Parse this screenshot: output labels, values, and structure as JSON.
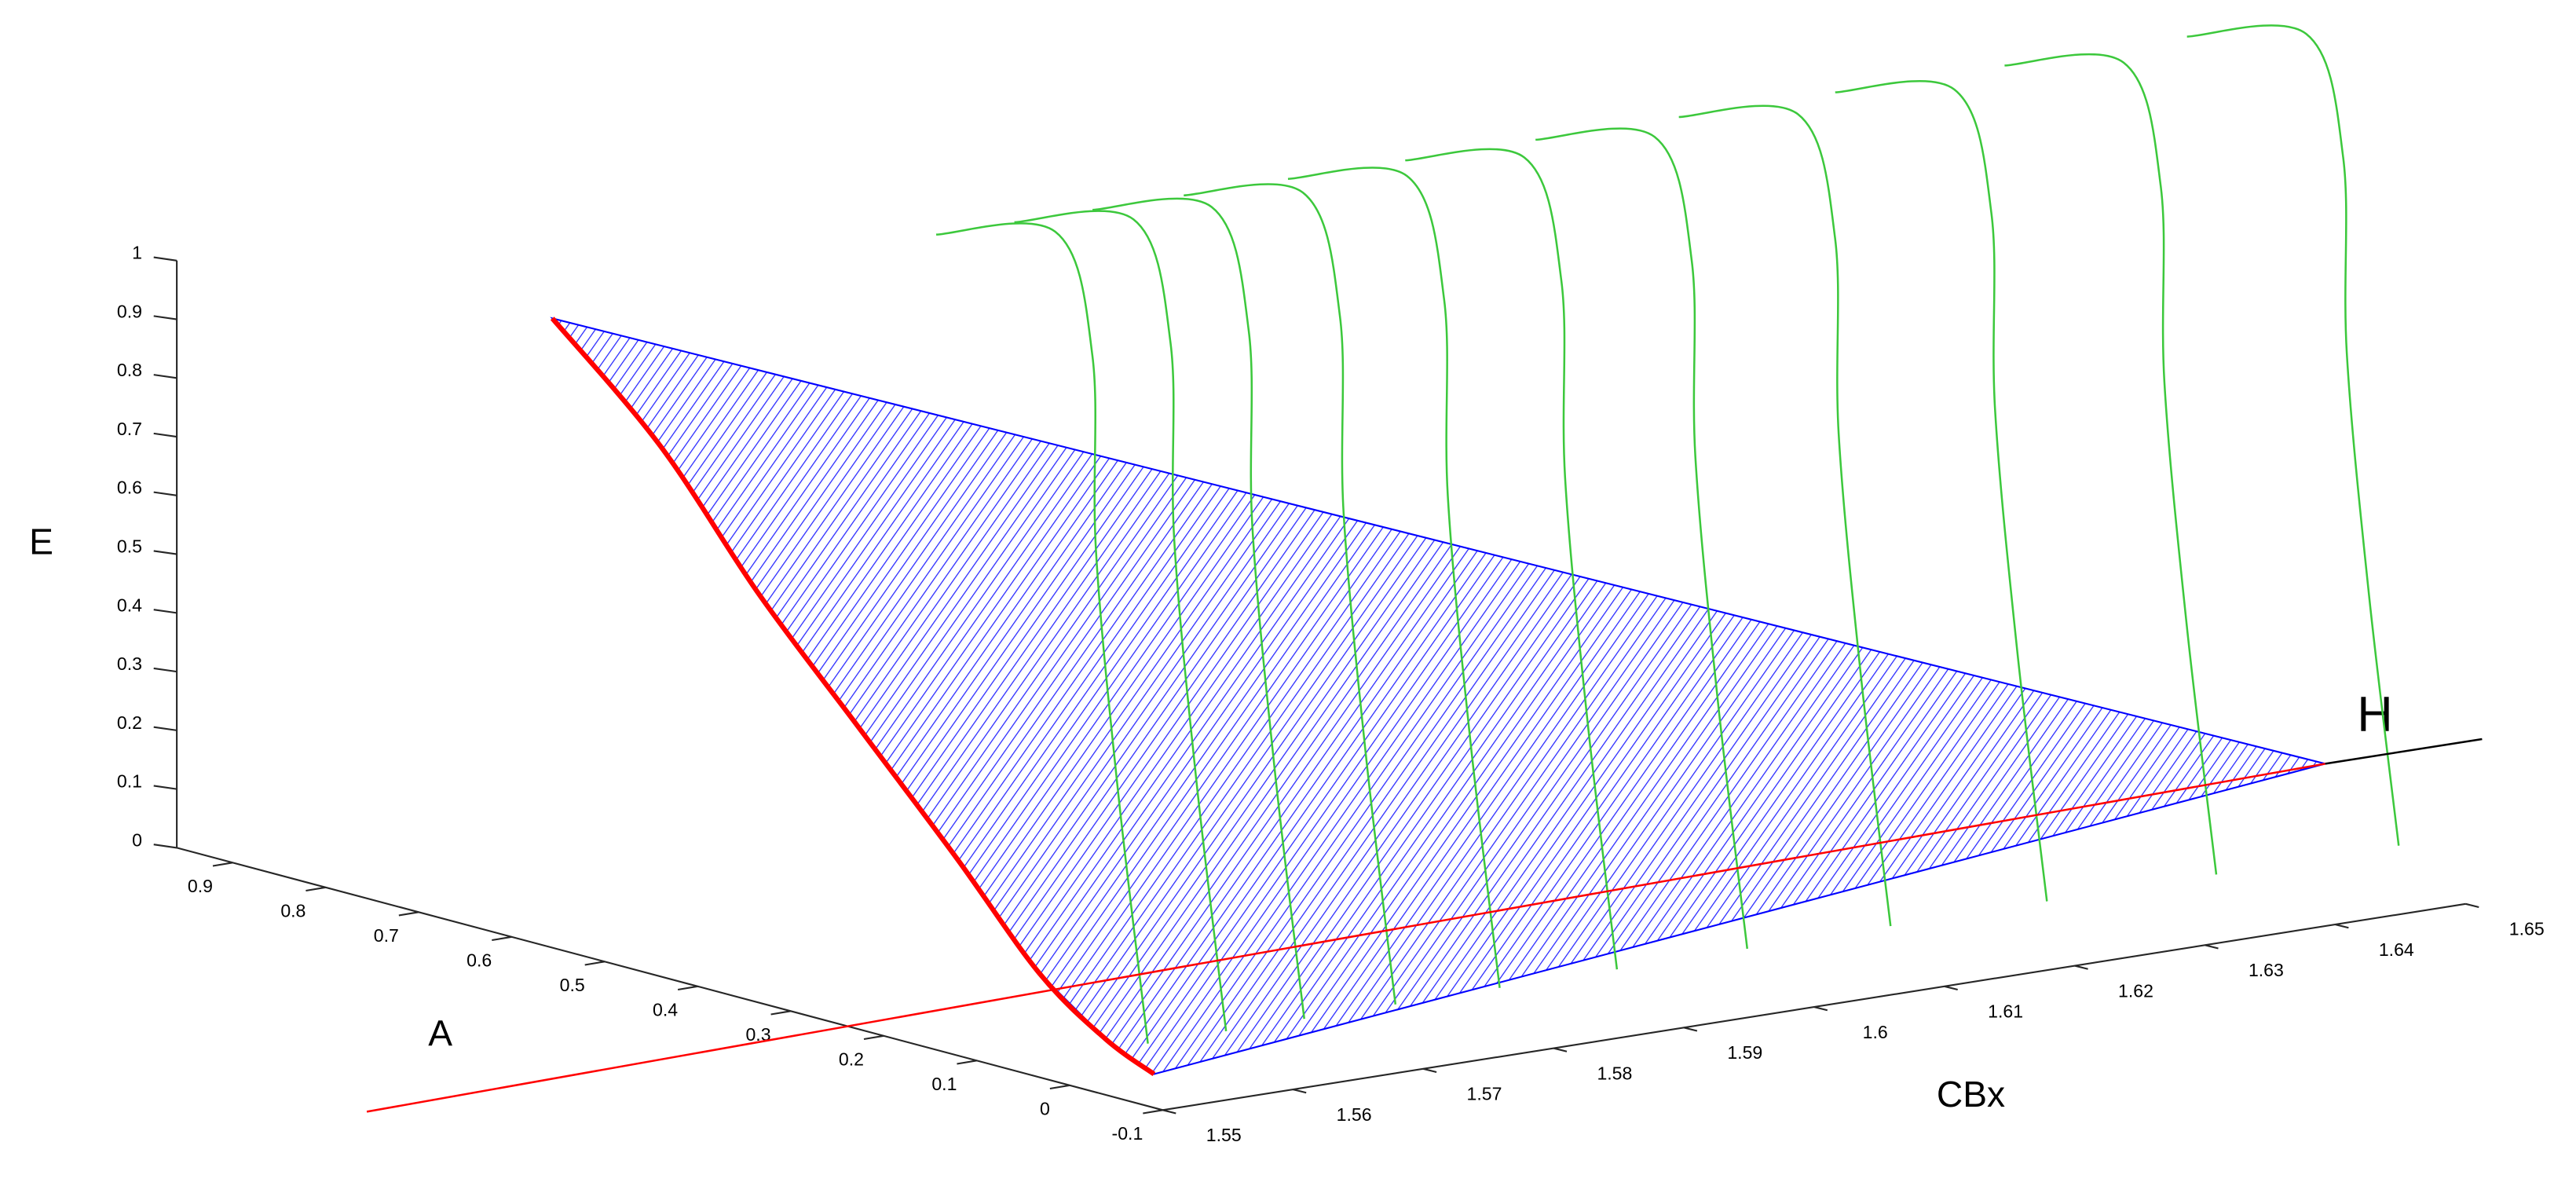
{
  "chart_data": {
    "type": "line3d",
    "xlabel": "CBx",
    "ylabel": "A",
    "zlabel": "E",
    "annotation": "H",
    "xlim": [
      1.55,
      1.65
    ],
    "xticks": [
      1.55,
      1.56,
      1.57,
      1.58,
      1.59,
      1.6,
      1.61,
      1.62,
      1.63,
      1.64,
      1.65
    ],
    "ylim": [
      -0.1,
      0.96
    ],
    "yticks": [
      -0.1,
      0,
      0.1,
      0.2,
      0.3,
      0.4,
      0.5,
      0.6,
      0.7,
      0.8,
      0.9
    ],
    "zlim": [
      0,
      1
    ],
    "zticks": [
      0,
      0.1,
      0.2,
      0.3,
      0.4,
      0.5,
      0.6,
      0.7,
      0.8,
      0.9,
      1
    ],
    "series": [
      {
        "color": "#0000ff",
        "style": "sheet",
        "x": [
          1.5674,
          1.5671,
          1.5654,
          1.5637,
          1.5627,
          1.5598,
          1.5563,
          1.5529,
          1.6686
        ],
        "y": [
          0.8,
          0.68,
          0.55,
          0.42,
          0.3,
          0.17,
          0.05,
          -0.05,
          0.3115
        ],
        "z": [
          0.908,
          0.743,
          0.551,
          0.387,
          0.217,
          0.085,
          0.036,
          0.03,
          0
        ]
      },
      {
        "color": "#3cc83c",
        "x": [
          1.556,
          1.568,
          1.582,
          1.596,
          1.606,
          1.604
        ],
        "y": [
          0,
          0.2,
          0.42,
          0.62,
          0.8,
          0.9
        ],
        "z": [
          0.05,
          0.35,
          0.62,
          0.82,
          0.92,
          0.88
        ]
      },
      {
        "color": "#3cc83c",
        "x": [
          1.562,
          1.574,
          1.588,
          1.602,
          1.612,
          1.61
        ],
        "y": [
          0,
          0.2,
          0.42,
          0.62,
          0.8,
          0.9
        ],
        "z": [
          0.05,
          0.35,
          0.62,
          0.82,
          0.92,
          0.88
        ]
      },
      {
        "color": "#3cc83c",
        "x": [
          1.568,
          1.58,
          1.594,
          1.608,
          1.618,
          1.616
        ],
        "y": [
          0,
          0.2,
          0.42,
          0.62,
          0.8,
          0.9
        ],
        "z": [
          0.05,
          0.35,
          0.62,
          0.82,
          0.92,
          0.88
        ]
      },
      {
        "color": "#3cc83c",
        "x": [
          1.575,
          1.587,
          1.601,
          1.615,
          1.625,
          1.623
        ],
        "y": [
          0,
          0.2,
          0.42,
          0.62,
          0.8,
          0.9
        ],
        "z": [
          0.05,
          0.35,
          0.62,
          0.82,
          0.92,
          0.88
        ]
      },
      {
        "color": "#3cc83c",
        "x": [
          1.583,
          1.595,
          1.609,
          1.623,
          1.633,
          1.631
        ],
        "y": [
          0,
          0.2,
          0.42,
          0.62,
          0.8,
          0.9
        ],
        "z": [
          0.05,
          0.35,
          0.62,
          0.82,
          0.92,
          0.88
        ]
      },
      {
        "color": "#3cc83c",
        "x": [
          1.592,
          1.604,
          1.618,
          1.632,
          1.642,
          1.64
        ],
        "y": [
          0,
          0.2,
          0.42,
          0.62,
          0.8,
          0.9
        ],
        "z": [
          0.05,
          0.35,
          0.62,
          0.82,
          0.92,
          0.88
        ]
      },
      {
        "color": "#3cc83c",
        "x": [
          1.602,
          1.614,
          1.628,
          1.642,
          1.652,
          1.65
        ],
        "y": [
          0,
          0.2,
          0.42,
          0.62,
          0.8,
          0.9
        ],
        "z": [
          0.05,
          0.35,
          0.62,
          0.82,
          0.92,
          0.88
        ]
      },
      {
        "color": "#3cc83c",
        "x": [
          1.613,
          1.625,
          1.639,
          1.653,
          1.663,
          1.661
        ],
        "y": [
          0,
          0.2,
          0.42,
          0.62,
          0.8,
          0.9
        ],
        "z": [
          0.05,
          0.35,
          0.62,
          0.82,
          0.92,
          0.88
        ]
      },
      {
        "color": "#3cc83c",
        "x": [
          1.625,
          1.637,
          1.651,
          1.665,
          1.675,
          1.673
        ],
        "y": [
          0,
          0.2,
          0.42,
          0.62,
          0.8,
          0.9
        ],
        "z": [
          0.05,
          0.35,
          0.62,
          0.82,
          0.92,
          0.88
        ]
      },
      {
        "color": "#3cc83c",
        "x": [
          1.638,
          1.65,
          1.664,
          1.678,
          1.688,
          1.686
        ],
        "y": [
          0,
          0.2,
          0.42,
          0.62,
          0.8,
          0.9
        ],
        "z": [
          0.05,
          0.35,
          0.62,
          0.82,
          0.92,
          0.88
        ]
      },
      {
        "color": "#3cc83c",
        "x": [
          1.652,
          1.664,
          1.678,
          1.692,
          1.702,
          1.7
        ],
        "y": [
          0,
          0.2,
          0.42,
          0.62,
          0.8,
          0.9
        ],
        "z": [
          0.05,
          0.35,
          0.62,
          0.82,
          0.92,
          0.88
        ]
      },
      {
        "color": "#ff0000",
        "line_width": 3,
        "x": [
          1.5674,
          1.5671,
          1.5654,
          1.5637,
          1.5627,
          1.5598,
          1.5563,
          1.5529
        ],
        "y": [
          0.8,
          0.68,
          0.55,
          0.42,
          0.3,
          0.17,
          0.05,
          -0.05
        ],
        "z": [
          0.908,
          0.743,
          0.551,
          0.387,
          0.217,
          0.085,
          0.036,
          0.03
        ]
      },
      {
        "color": "#ff0000",
        "x": [
          1.5114,
          1.6686
        ],
        "y": [
          0.215,
          0.3115
        ],
        "z": [
          0,
          0
        ]
      },
      {
        "color": "#000000",
        "x": [
          1.6686,
          1.6806
        ],
        "y": [
          0.3115,
          0.311
        ],
        "z": [
          0,
          0
        ]
      }
    ]
  }
}
